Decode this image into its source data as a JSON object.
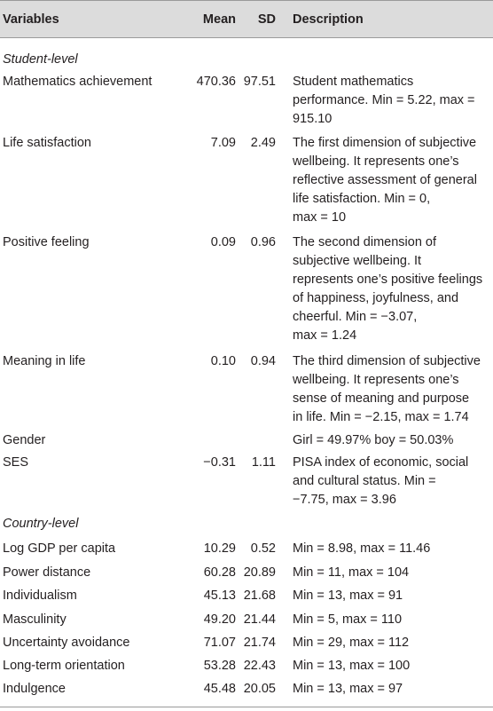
{
  "header": {
    "variables": "Variables",
    "mean": "Mean",
    "sd": "SD",
    "description": "Description"
  },
  "sections": {
    "student": "Student-level",
    "country": "Country-level"
  },
  "rows": [
    {
      "variable": "Mathematics achievement",
      "mean": "470.36",
      "sd": "97.51",
      "desc": [
        "Student mathematics",
        "performance. Min = 5.22, max =",
        "915.10"
      ]
    },
    {
      "variable": "Life satisfaction",
      "mean": "7.09",
      "sd": "2.49",
      "desc": [
        "The first dimension of subjective",
        "wellbeing. It represents one’s",
        "reflective assessment of general",
        "life satisfaction. Min = 0,",
        "max = 10"
      ]
    },
    {
      "variable": "Positive feeling",
      "mean": "0.09",
      "sd": "0.96",
      "desc": [
        "The second dimension of",
        "subjective wellbeing. It",
        "represents one’s positive feelings",
        "of happiness, joyfulness, and",
        "cheerful. Min = −3.07,",
        "max = 1.24"
      ]
    },
    {
      "variable": "Meaning in life",
      "mean": "0.10",
      "sd": "0.94",
      "desc": [
        "The third dimension of subjective",
        "wellbeing. It represents one’s",
        "sense of meaning and purpose",
        "in life. Min = −2.15, max = 1.74"
      ]
    },
    {
      "variable": "Gender",
      "mean": "",
      "sd": "",
      "desc": [
        "Girl = 49.97% boy = 50.03%"
      ]
    },
    {
      "variable": "SES",
      "mean": "−0.31",
      "sd": "1.11",
      "desc": [
        "PISA index of economic, social",
        "and cultural status. Min =",
        "−7.75, max = 3.96"
      ]
    },
    {
      "variable": "Log GDP per capita",
      "mean": "10.29",
      "sd": "0.52",
      "desc": [
        "Min = 8.98, max = 11.46"
      ]
    },
    {
      "variable": "Power distance",
      "mean": "60.28",
      "sd": "20.89",
      "desc": [
        "Min = 11, max = 104"
      ]
    },
    {
      "variable": "Individualism",
      "mean": "45.13",
      "sd": "21.68",
      "desc": [
        "Min = 13, max = 91"
      ]
    },
    {
      "variable": "Masculinity",
      "mean": "49.20",
      "sd": "21.44",
      "desc": [
        "Min = 5, max = 110"
      ]
    },
    {
      "variable": "Uncertainty avoidance",
      "mean": "71.07",
      "sd": "21.74",
      "desc": [
        "Min = 29, max = 112"
      ]
    },
    {
      "variable": "Long-term orientation",
      "mean": "53.28",
      "sd": "22.43",
      "desc": [
        "Min = 13, max = 100"
      ]
    },
    {
      "variable": "Indulgence",
      "mean": "45.48",
      "sd": "20.05",
      "desc": [
        "Min = 13, max = 97"
      ]
    }
  ]
}
